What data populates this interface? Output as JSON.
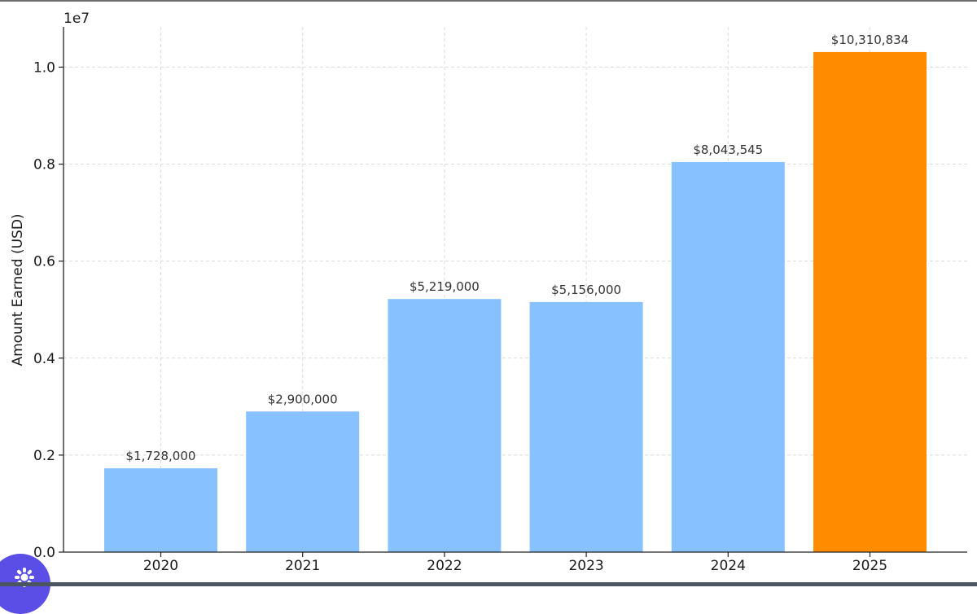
{
  "chart_data": {
    "type": "bar",
    "categories": [
      "2020",
      "2021",
      "2022",
      "2023",
      "2024",
      "2025"
    ],
    "values": [
      1728000,
      2900000,
      5219000,
      5156000,
      8043545,
      10310834
    ],
    "bar_labels": [
      "$1,728,000",
      "$2,900,000",
      "$5,219,000",
      "$5,156,000",
      "$8,043,545",
      "$10,310,834"
    ],
    "bar_colors": [
      "#87c1ff",
      "#87c1ff",
      "#87c1ff",
      "#87c1ff",
      "#87c1ff",
      "#ff8c00"
    ],
    "ylabel": "Amount Earned (USD)",
    "xlabel": "",
    "y_scale_label": "1e7",
    "ylim": [
      0,
      10830000
    ],
    "yticks": [
      0,
      2000000,
      4000000,
      6000000,
      8000000,
      10000000
    ],
    "ytick_labels": [
      "0.0",
      "0.2",
      "0.4",
      "0.6",
      "0.8",
      "1.0"
    ],
    "grid": true
  },
  "colors": {
    "bar_default": "#87c1ff",
    "bar_highlight": "#ff8c00",
    "badge": "#5b4ee6"
  },
  "icons": {
    "badge_icon": "sparkle-icon"
  }
}
